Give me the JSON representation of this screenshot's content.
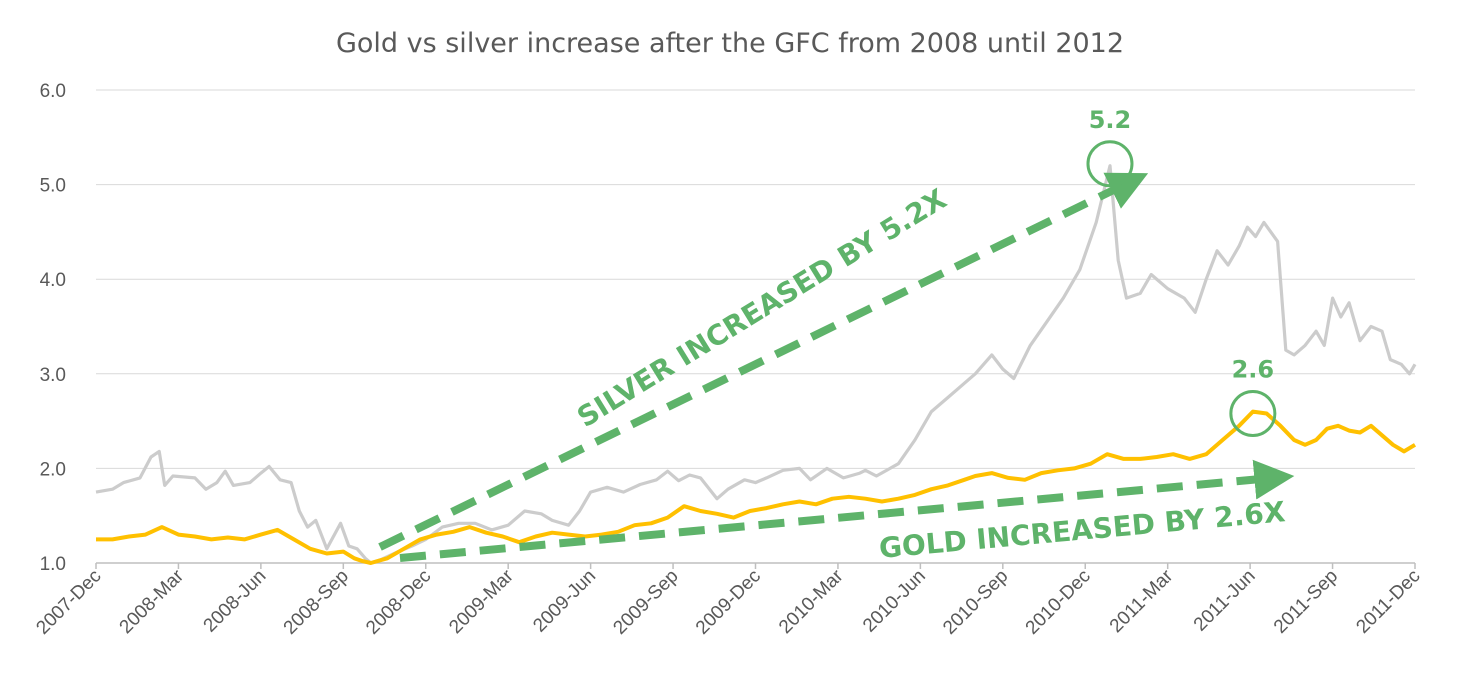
{
  "chart_data": {
    "type": "line",
    "title": "Gold vs silver increase after the GFC from 2008 until 2012",
    "xlabel": "",
    "ylabel": "",
    "ylim": [
      1.0,
      6.0
    ],
    "yticks": [
      "1.0",
      "2.0",
      "3.0",
      "4.0",
      "5.0",
      "6.0"
    ],
    "x_tick_labels": [
      "2007-Dec",
      "2008-Mar",
      "2008-Jun",
      "2008-Sep",
      "2008-Dec",
      "2009-Mar",
      "2009-Jun",
      "2009-Sep",
      "2009-Dec",
      "2010-Mar",
      "2010-Jun",
      "2010-Sep",
      "2010-Dec",
      "2011-Mar",
      "2011-Jun",
      "2011-Sep",
      "2011-Dec"
    ],
    "grid": true,
    "series": [
      {
        "key": "silver",
        "color": "#cccccc",
        "points": [
          [
            0.0,
            1.75
          ],
          [
            0.3,
            1.78
          ],
          [
            0.5,
            1.85
          ],
          [
            0.8,
            1.9
          ],
          [
            1.0,
            2.12
          ],
          [
            1.15,
            2.18
          ],
          [
            1.25,
            1.82
          ],
          [
            1.4,
            1.92
          ],
          [
            1.8,
            1.9
          ],
          [
            2.0,
            1.78
          ],
          [
            2.2,
            1.85
          ],
          [
            2.35,
            1.97
          ],
          [
            2.5,
            1.82
          ],
          [
            2.8,
            1.85
          ],
          [
            3.0,
            1.95
          ],
          [
            3.15,
            2.02
          ],
          [
            3.35,
            1.88
          ],
          [
            3.55,
            1.85
          ],
          [
            3.7,
            1.55
          ],
          [
            3.85,
            1.38
          ],
          [
            4.0,
            1.45
          ],
          [
            4.2,
            1.15
          ],
          [
            4.45,
            1.42
          ],
          [
            4.6,
            1.18
          ],
          [
            4.75,
            1.15
          ],
          [
            4.9,
            1.05
          ],
          [
            5.0,
            1.0
          ],
          [
            5.2,
            1.04
          ],
          [
            5.5,
            1.12
          ],
          [
            5.75,
            1.18
          ],
          [
            6.0,
            1.25
          ],
          [
            6.3,
            1.38
          ],
          [
            6.6,
            1.42
          ],
          [
            6.9,
            1.42
          ],
          [
            7.2,
            1.35
          ],
          [
            7.5,
            1.4
          ],
          [
            7.8,
            1.55
          ],
          [
            8.1,
            1.52
          ],
          [
            8.3,
            1.45
          ],
          [
            8.6,
            1.4
          ],
          [
            8.8,
            1.55
          ],
          [
            9.0,
            1.75
          ],
          [
            9.3,
            1.8
          ],
          [
            9.6,
            1.75
          ],
          [
            9.9,
            1.83
          ],
          [
            10.2,
            1.88
          ],
          [
            10.4,
            1.97
          ],
          [
            10.6,
            1.87
          ],
          [
            10.8,
            1.93
          ],
          [
            11.0,
            1.9
          ],
          [
            11.3,
            1.68
          ],
          [
            11.5,
            1.78
          ],
          [
            11.8,
            1.88
          ],
          [
            12.0,
            1.85
          ],
          [
            12.2,
            1.9
          ],
          [
            12.5,
            1.98
          ],
          [
            12.8,
            2.0
          ],
          [
            13.0,
            1.88
          ],
          [
            13.3,
            2.0
          ],
          [
            13.6,
            1.9
          ],
          [
            13.9,
            1.95
          ],
          [
            14.0,
            1.98
          ],
          [
            14.2,
            1.92
          ],
          [
            14.6,
            2.05
          ],
          [
            14.9,
            2.3
          ],
          [
            15.2,
            2.6
          ],
          [
            15.5,
            2.75
          ],
          [
            15.8,
            2.9
          ],
          [
            16.0,
            3.0
          ],
          [
            16.3,
            3.2
          ],
          [
            16.5,
            3.05
          ],
          [
            16.7,
            2.95
          ],
          [
            17.0,
            3.3
          ],
          [
            17.3,
            3.55
          ],
          [
            17.6,
            3.8
          ],
          [
            17.9,
            4.1
          ],
          [
            18.2,
            4.6
          ],
          [
            18.45,
            5.2
          ],
          [
            18.6,
            4.2
          ],
          [
            18.75,
            3.8
          ],
          [
            19.0,
            3.85
          ],
          [
            19.2,
            4.05
          ],
          [
            19.5,
            3.9
          ],
          [
            19.8,
            3.8
          ],
          [
            20.0,
            3.65
          ],
          [
            20.2,
            4.0
          ],
          [
            20.4,
            4.3
          ],
          [
            20.6,
            4.15
          ],
          [
            20.8,
            4.35
          ],
          [
            20.95,
            4.55
          ],
          [
            21.1,
            4.45
          ],
          [
            21.25,
            4.6
          ],
          [
            21.5,
            4.4
          ],
          [
            21.65,
            3.25
          ],
          [
            21.8,
            3.2
          ],
          [
            22.0,
            3.3
          ],
          [
            22.2,
            3.45
          ],
          [
            22.35,
            3.3
          ],
          [
            22.5,
            3.8
          ],
          [
            22.65,
            3.6
          ],
          [
            22.8,
            3.75
          ],
          [
            23.0,
            3.35
          ],
          [
            23.2,
            3.5
          ],
          [
            23.4,
            3.45
          ],
          [
            23.55,
            3.15
          ],
          [
            23.75,
            3.1
          ],
          [
            23.9,
            3.0
          ],
          [
            24.0,
            3.1
          ]
        ]
      },
      {
        "key": "gold",
        "color": "#ffc000",
        "points": [
          [
            0.0,
            1.25
          ],
          [
            0.3,
            1.25
          ],
          [
            0.6,
            1.28
          ],
          [
            0.9,
            1.3
          ],
          [
            1.2,
            1.38
          ],
          [
            1.5,
            1.3
          ],
          [
            1.8,
            1.28
          ],
          [
            2.1,
            1.25
          ],
          [
            2.4,
            1.27
          ],
          [
            2.7,
            1.25
          ],
          [
            3.0,
            1.3
          ],
          [
            3.3,
            1.35
          ],
          [
            3.6,
            1.25
          ],
          [
            3.9,
            1.15
          ],
          [
            4.2,
            1.1
          ],
          [
            4.5,
            1.12
          ],
          [
            4.7,
            1.05
          ],
          [
            4.85,
            1.02
          ],
          [
            5.0,
            1.0
          ],
          [
            5.3,
            1.05
          ],
          [
            5.6,
            1.15
          ],
          [
            5.9,
            1.25
          ],
          [
            6.2,
            1.3
          ],
          [
            6.5,
            1.33
          ],
          [
            6.8,
            1.38
          ],
          [
            7.1,
            1.32
          ],
          [
            7.4,
            1.28
          ],
          [
            7.7,
            1.22
          ],
          [
            8.0,
            1.28
          ],
          [
            8.3,
            1.32
          ],
          [
            8.6,
            1.3
          ],
          [
            8.9,
            1.28
          ],
          [
            9.2,
            1.3
          ],
          [
            9.5,
            1.33
          ],
          [
            9.8,
            1.4
          ],
          [
            10.1,
            1.42
          ],
          [
            10.4,
            1.48
          ],
          [
            10.7,
            1.6
          ],
          [
            11.0,
            1.55
          ],
          [
            11.3,
            1.52
          ],
          [
            11.6,
            1.48
          ],
          [
            11.9,
            1.55
          ],
          [
            12.2,
            1.58
          ],
          [
            12.5,
            1.62
          ],
          [
            12.8,
            1.65
          ],
          [
            13.1,
            1.62
          ],
          [
            13.4,
            1.68
          ],
          [
            13.7,
            1.7
          ],
          [
            14.0,
            1.68
          ],
          [
            14.3,
            1.65
          ],
          [
            14.6,
            1.68
          ],
          [
            14.9,
            1.72
          ],
          [
            15.2,
            1.78
          ],
          [
            15.5,
            1.82
          ],
          [
            15.8,
            1.88
          ],
          [
            16.0,
            1.92
          ],
          [
            16.3,
            1.95
          ],
          [
            16.6,
            1.9
          ],
          [
            16.9,
            1.88
          ],
          [
            17.2,
            1.95
          ],
          [
            17.5,
            1.98
          ],
          [
            17.8,
            2.0
          ],
          [
            18.1,
            2.05
          ],
          [
            18.4,
            2.15
          ],
          [
            18.7,
            2.1
          ],
          [
            19.0,
            2.1
          ],
          [
            19.3,
            2.12
          ],
          [
            19.6,
            2.15
          ],
          [
            19.9,
            2.1
          ],
          [
            20.2,
            2.15
          ],
          [
            20.5,
            2.3
          ],
          [
            20.8,
            2.45
          ],
          [
            21.05,
            2.6
          ],
          [
            21.3,
            2.58
          ],
          [
            21.55,
            2.45
          ],
          [
            21.8,
            2.3
          ],
          [
            22.0,
            2.25
          ],
          [
            22.2,
            2.3
          ],
          [
            22.4,
            2.42
          ],
          [
            22.6,
            2.45
          ],
          [
            22.8,
            2.4
          ],
          [
            23.0,
            2.38
          ],
          [
            23.2,
            2.45
          ],
          [
            23.4,
            2.35
          ],
          [
            23.6,
            2.25
          ],
          [
            23.8,
            2.18
          ],
          [
            24.0,
            2.25
          ]
        ]
      }
    ],
    "annotations": {
      "silver_peak": {
        "text": "5.2",
        "x": 18.45,
        "y": 5.22
      },
      "gold_peak": {
        "text": "2.6",
        "x": 21.05,
        "y": 2.58
      },
      "silver_arrow": {
        "text": "SILVER INCREASED BY 5.2X"
      },
      "gold_arrow": {
        "text": "GOLD INCREASED BY 2.6X"
      },
      "color": "#5eb36a"
    }
  }
}
